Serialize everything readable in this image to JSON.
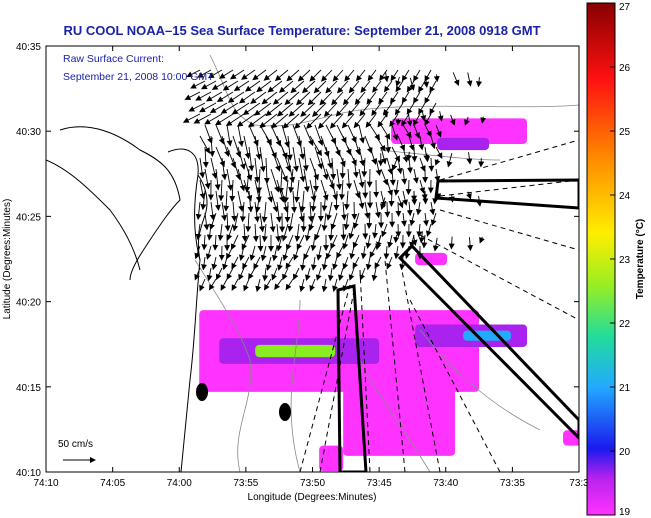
{
  "chart_data": {
    "type": "map",
    "title": "RU COOL  NOAA–15  Sea Surface Temperature:  September 21, 2008 0918 GMT",
    "annotation_lines": [
      "Raw Surface Current:",
      "September 21, 2008 10:00 GMT"
    ],
    "xlabel": "Longitude (Degrees:Minutes)",
    "ylabel": "Latitude (Degrees:Minutes)",
    "x_ticks": [
      "74:10",
      "74:05",
      "74:00",
      "73:55",
      "73:50",
      "73:45",
      "73:40",
      "73:35",
      "73:3"
    ],
    "x_tick_values": [
      -74.1667,
      -74.0833,
      -74.0,
      -73.9167,
      -73.8333,
      -73.75,
      -73.6667,
      -73.5833,
      -73.5
    ],
    "y_ticks": [
      "40:10",
      "40:15",
      "40:20",
      "40:25",
      "40:30",
      "40:35"
    ],
    "y_tick_values": [
      40.1667,
      40.25,
      40.3333,
      40.4167,
      40.5,
      40.5833
    ],
    "xlim": [
      -74.1667,
      -73.5
    ],
    "ylim": [
      40.1667,
      40.5833
    ],
    "scale_label": "50 cm/s",
    "colorbar": {
      "label": "Temperature (°C)",
      "min": 19,
      "max": 27,
      "ticks": [
        19,
        20,
        21,
        22,
        23,
        24,
        25,
        26,
        27
      ],
      "colors": [
        "#ff33ff",
        "#aa22ee",
        "#1a1aee",
        "#22aaff",
        "#22dd99",
        "#88ee22",
        "#ffee00",
        "#ff8800",
        "#ff1111",
        "#cc0033",
        "#880000"
      ]
    },
    "sst_patches": [
      {
        "lon": -73.65,
        "lat": 40.5,
        "w": 0.17,
        "h": 0.025,
        "temp": 19.0
      },
      {
        "lon": -73.645,
        "lat": 40.4875,
        "w": 0.065,
        "h": 0.012,
        "temp": 20.2
      },
      {
        "lon": -73.685,
        "lat": 40.375,
        "w": 0.04,
        "h": 0.012,
        "temp": 19.0
      },
      {
        "lon": -73.8,
        "lat": 40.285,
        "w": 0.35,
        "h": 0.08,
        "temp": 19.0
      },
      {
        "lon": -73.85,
        "lat": 40.285,
        "w": 0.2,
        "h": 0.025,
        "temp": 20.0
      },
      {
        "lon": -73.855,
        "lat": 40.285,
        "w": 0.1,
        "h": 0.012,
        "temp": 23.0
      },
      {
        "lon": -73.635,
        "lat": 40.3,
        "w": 0.14,
        "h": 0.022,
        "temp": 20.0
      },
      {
        "lon": -73.615,
        "lat": 40.3,
        "w": 0.06,
        "h": 0.01,
        "temp": 21.3
      },
      {
        "lon": -73.725,
        "lat": 40.215,
        "w": 0.14,
        "h": 0.065,
        "temp": 19.0
      },
      {
        "lon": -73.81,
        "lat": 40.18,
        "w": 0.03,
        "h": 0.025,
        "temp": 19.0
      },
      {
        "lon": -73.505,
        "lat": 40.2,
        "w": 0.03,
        "h": 0.015,
        "temp": 19.0
      }
    ],
    "current_field": {
      "anchor_lon": -73.88,
      "anchor_lat": 40.48,
      "note": "southwestward surface current vectors concentrated off Sandy Hook"
    },
    "reference_vector": {
      "lon": -74.14,
      "lat": 40.175,
      "speed_cm_s": 50
    }
  },
  "colors": {
    "title": "#1a22a8",
    "axis": "#000000",
    "coast": "#000000",
    "contour": "#888888"
  }
}
